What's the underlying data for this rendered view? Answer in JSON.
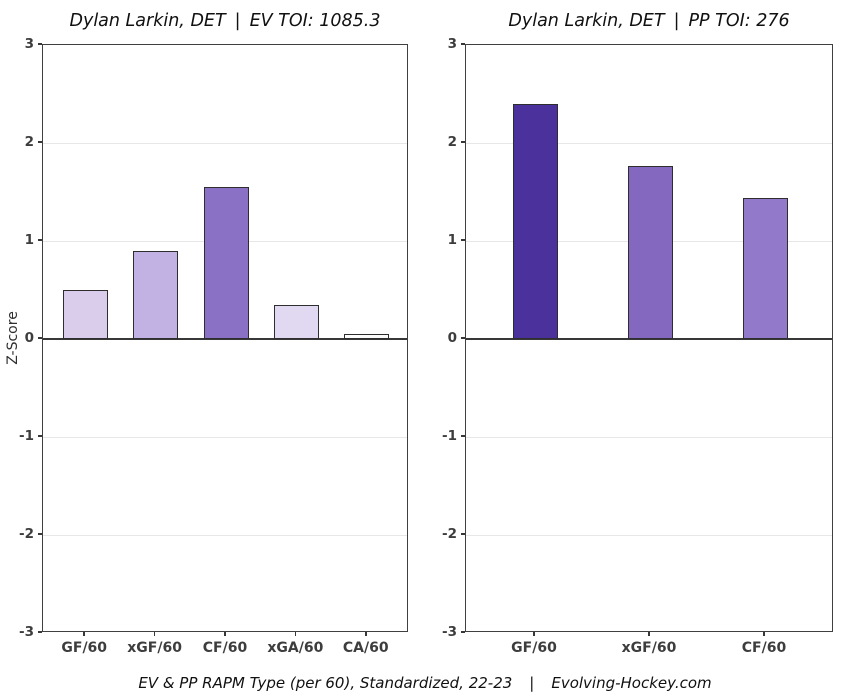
{
  "y_axis": {
    "label": "Z-Score",
    "tick_labels": [
      "3",
      "2",
      "1",
      "0",
      "-1",
      "-2",
      "-3"
    ],
    "range": [
      -3,
      3
    ]
  },
  "caption": {
    "left": "EV & PP RAPM Type (per 60), Standardized, 22-23",
    "sep": "|",
    "right": "Evolving-Hockey.com"
  },
  "colors": {
    "bar_outline": "#2e2e2e",
    "zero_line": "#383838",
    "gridline": "#e7e7e7",
    "axis_text": "#3d3d3d",
    "plot_border": "#404040",
    "dark_purple": "#4b319c",
    "mid_purple": "#8b71c5",
    "light_purple": "#d9cdeb"
  },
  "chart_data": [
    {
      "type": "bar",
      "title": "Dylan Larkin, DET | EV TOI: 1085.3",
      "title_parts": {
        "player": "Dylan Larkin, DET",
        "sep": "|",
        "stat": "EV TOI: 1085.3"
      },
      "categories": [
        "GF/60",
        "xGF/60",
        "CF/60",
        "xGA/60",
        "CA/60"
      ],
      "values": [
        0.5,
        0.9,
        1.55,
        0.35,
        0.05
      ],
      "bar_colors": [
        "#d9cdeb",
        "#c2b1e3",
        "#8b71c5",
        "#e1d8f1",
        "#fdfdfe"
      ],
      "xlabel": "",
      "ylabel": "Z-Score",
      "ylim": [
        -3,
        3
      ],
      "grid": true,
      "legend": "none"
    },
    {
      "type": "bar",
      "title": "Dylan Larkin, DET | PP TOI: 276",
      "title_parts": {
        "player": "Dylan Larkin, DET",
        "sep": "|",
        "stat": "PP TOI: 276"
      },
      "categories": [
        "GF/60",
        "xGF/60",
        "CF/60"
      ],
      "values": [
        2.4,
        1.77,
        1.44
      ],
      "bar_colors": [
        "#4b319c",
        "#8468c0",
        "#9379c9"
      ],
      "xlabel": "",
      "ylabel": "",
      "ylim": [
        -3,
        3
      ],
      "grid": true,
      "legend": "none"
    }
  ]
}
